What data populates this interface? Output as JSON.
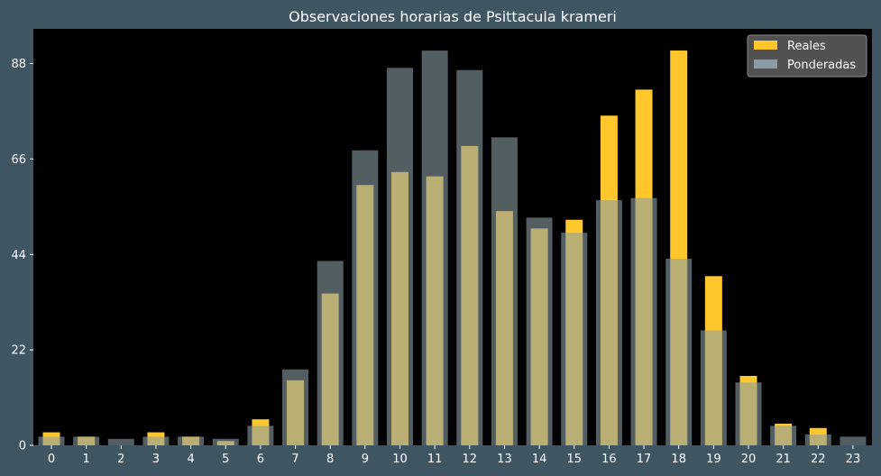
{
  "chart_data": {
    "type": "bar",
    "title": "Observaciones horarias de Psittacula krameri",
    "xlabel": "",
    "ylabel": "",
    "categories": [
      "0",
      "1",
      "2",
      "3",
      "4",
      "5",
      "6",
      "7",
      "8",
      "9",
      "10",
      "11",
      "12",
      "13",
      "14",
      "15",
      "16",
      "17",
      "18",
      "19",
      "20",
      "21",
      "22",
      "23"
    ],
    "series": [
      {
        "name": "Reales",
        "color": "#ffc72c",
        "values": [
          3,
          2,
          0,
          3,
          2,
          1,
          6,
          15,
          35,
          60,
          63,
          62,
          69,
          54,
          50,
          52,
          76,
          82,
          91,
          39,
          16,
          5,
          4,
          0
        ]
      },
      {
        "name": "Ponderadas",
        "color": "#8a9ca3",
        "values": [
          2,
          2,
          1.5,
          2,
          2,
          1.5,
          4.5,
          17.5,
          42.5,
          68,
          87,
          91,
          86.5,
          71,
          52.5,
          49,
          56.5,
          57,
          43,
          26.5,
          14.5,
          4.5,
          2.5,
          2
        ]
      }
    ],
    "yticks": [
      0,
      22,
      44,
      66,
      88
    ],
    "ylim": [
      0,
      96
    ],
    "grid": false,
    "legend_position": "top-right",
    "background_color": "#3f5562",
    "plot_background": "#000000"
  }
}
